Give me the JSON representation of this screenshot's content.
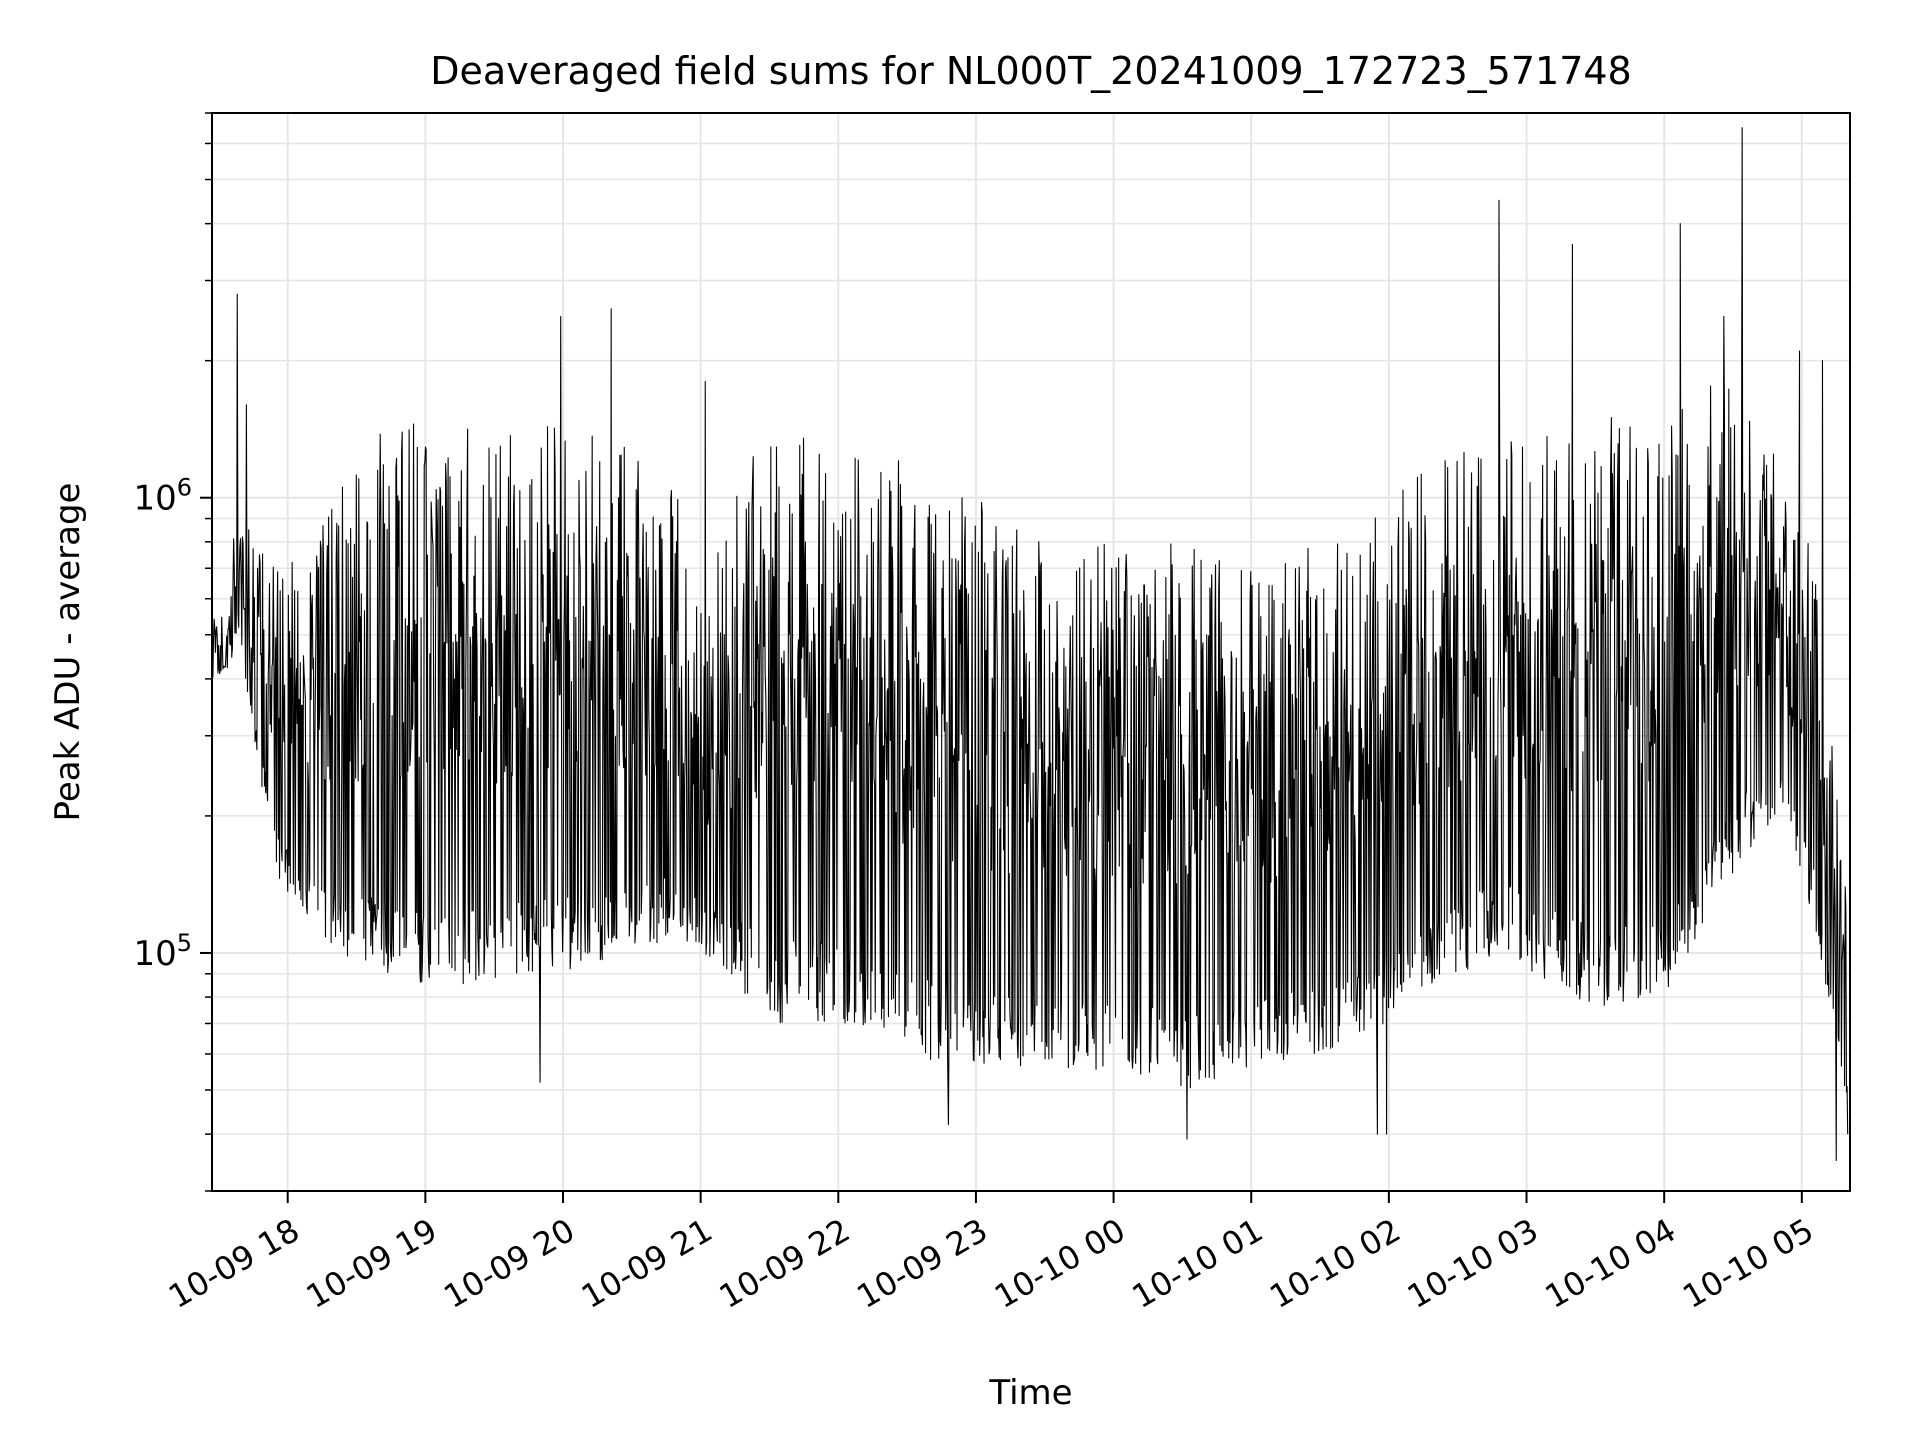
{
  "chart_data": {
    "type": "line",
    "title": "Deaveraged field sums for NL000T_20241009_172723_571748",
    "xlabel": "Time",
    "ylabel": "Peak ADU - average",
    "x_start": "2024-10-09T17:27:23",
    "x_end": "2024-10-10T05:20:00",
    "xlim": [
      "2024-10-09T17:27:00",
      "2024-10-10T05:21:00"
    ],
    "ylim": [
      30000,
      7000000
    ],
    "y_scale": "log",
    "grid": true,
    "line_color": "#000000",
    "grid_color": "#e6e6e6",
    "x_ticks": [
      {
        "value": "2024-10-09T18:00",
        "label": "10-09 18"
      },
      {
        "value": "2024-10-09T19:00",
        "label": "10-09 19"
      },
      {
        "value": "2024-10-09T20:00",
        "label": "10-09 20"
      },
      {
        "value": "2024-10-09T21:00",
        "label": "10-09 21"
      },
      {
        "value": "2024-10-09T22:00",
        "label": "10-09 22"
      },
      {
        "value": "2024-10-09T23:00",
        "label": "10-09 23"
      },
      {
        "value": "2024-10-10T00:00",
        "label": "10-10 00"
      },
      {
        "value": "2024-10-10T01:00",
        "label": "10-10 01"
      },
      {
        "value": "2024-10-10T02:00",
        "label": "10-10 02"
      },
      {
        "value": "2024-10-10T03:00",
        "label": "10-10 03"
      },
      {
        "value": "2024-10-10T04:00",
        "label": "10-10 04"
      },
      {
        "value": "2024-10-10T05:00",
        "label": "10-10 05"
      }
    ],
    "y_ticks": [
      {
        "value": 100000,
        "base": "10",
        "exp": "5"
      },
      {
        "value": 1000000,
        "base": "10",
        "exp": "6"
      }
    ],
    "envelope": {
      "description_units": "time, low-envelope ADU, high-envelope ADU",
      "points": [
        [
          "2024-10-09T17:27",
          400000,
          550000
        ],
        [
          "2024-10-09T17:35",
          420000,
          560000
        ],
        [
          "2024-10-09T17:38",
          500000,
          1300000
        ],
        [
          "2024-10-09T17:45",
          300000,
          800000
        ],
        [
          "2024-10-09T17:55",
          150000,
          700000
        ],
        [
          "2024-10-09T18:10",
          110000,
          900000
        ],
        [
          "2024-10-09T18:25",
          95000,
          1100000
        ],
        [
          "2024-10-09T18:40",
          90000,
          1400000
        ],
        [
          "2024-10-09T19:00",
          85000,
          1500000
        ],
        [
          "2024-10-09T19:30",
          85000,
          1500000
        ],
        [
          "2024-10-09T20:00",
          90000,
          1450000
        ],
        [
          "2024-10-09T20:30",
          100000,
          1350000
        ],
        [
          "2024-10-09T20:50",
          110000,
          1000000
        ],
        [
          "2024-10-09T21:00",
          100000,
          600000
        ],
        [
          "2024-10-09T21:15",
          85000,
          1000000
        ],
        [
          "2024-10-09T21:30",
          70000,
          1500000
        ],
        [
          "2024-10-09T22:00",
          70000,
          1400000
        ],
        [
          "2024-10-09T22:30",
          60000,
          1200000
        ],
        [
          "2024-10-09T23:00",
          55000,
          1000000
        ],
        [
          "2024-10-09T23:30",
          55000,
          800000
        ],
        [
          "2024-10-10T00:00",
          55000,
          800000
        ],
        [
          "2024-10-10T00:30",
          50000,
          800000
        ],
        [
          "2024-10-10T01:00",
          55000,
          700000
        ],
        [
          "2024-10-10T01:30",
          60000,
          800000
        ],
        [
          "2024-10-10T02:00",
          70000,
          1000000
        ],
        [
          "2024-10-10T02:30",
          90000,
          1300000
        ],
        [
          "2024-10-10T02:50",
          100000,
          1400000
        ],
        [
          "2024-10-10T03:00",
          90000,
          1500000
        ],
        [
          "2024-10-10T03:30",
          75000,
          1500000
        ],
        [
          "2024-10-10T04:00",
          80000,
          1500000
        ],
        [
          "2024-10-10T04:30",
          150000,
          2000000
        ],
        [
          "2024-10-10T04:50",
          200000,
          1200000
        ],
        [
          "2024-10-10T05:05",
          120000,
          800000
        ],
        [
          "2024-10-10T05:20",
          45000,
          130000
        ]
      ]
    },
    "peaks": [
      [
        "2024-10-09T17:38",
        2800000
      ],
      [
        "2024-10-09T17:42",
        1600000
      ],
      [
        "2024-10-09T19:59",
        2500000
      ],
      [
        "2024-10-09T20:21",
        2600000
      ],
      [
        "2024-10-09T21:02",
        1800000
      ],
      [
        "2024-10-10T02:48",
        4500000
      ],
      [
        "2024-10-10T03:20",
        3600000
      ],
      [
        "2024-10-10T03:37",
        1500000
      ],
      [
        "2024-10-10T04:07",
        4000000
      ],
      [
        "2024-10-10T04:34",
        6500000
      ],
      [
        "2024-10-10T04:26",
        2500000
      ],
      [
        "2024-10-10T04:59",
        2100000
      ],
      [
        "2024-10-10T05:09",
        2000000
      ]
    ],
    "troughs": [
      [
        "2024-10-09T19:50",
        52000
      ],
      [
        "2024-10-09T22:48",
        42000
      ],
      [
        "2024-10-10T00:32",
        39000
      ],
      [
        "2024-10-10T01:59",
        40000
      ],
      [
        "2024-10-10T01:55",
        40000
      ],
      [
        "2024-10-10T05:15",
        35000
      ],
      [
        "2024-10-10T05:20",
        40000
      ]
    ]
  }
}
